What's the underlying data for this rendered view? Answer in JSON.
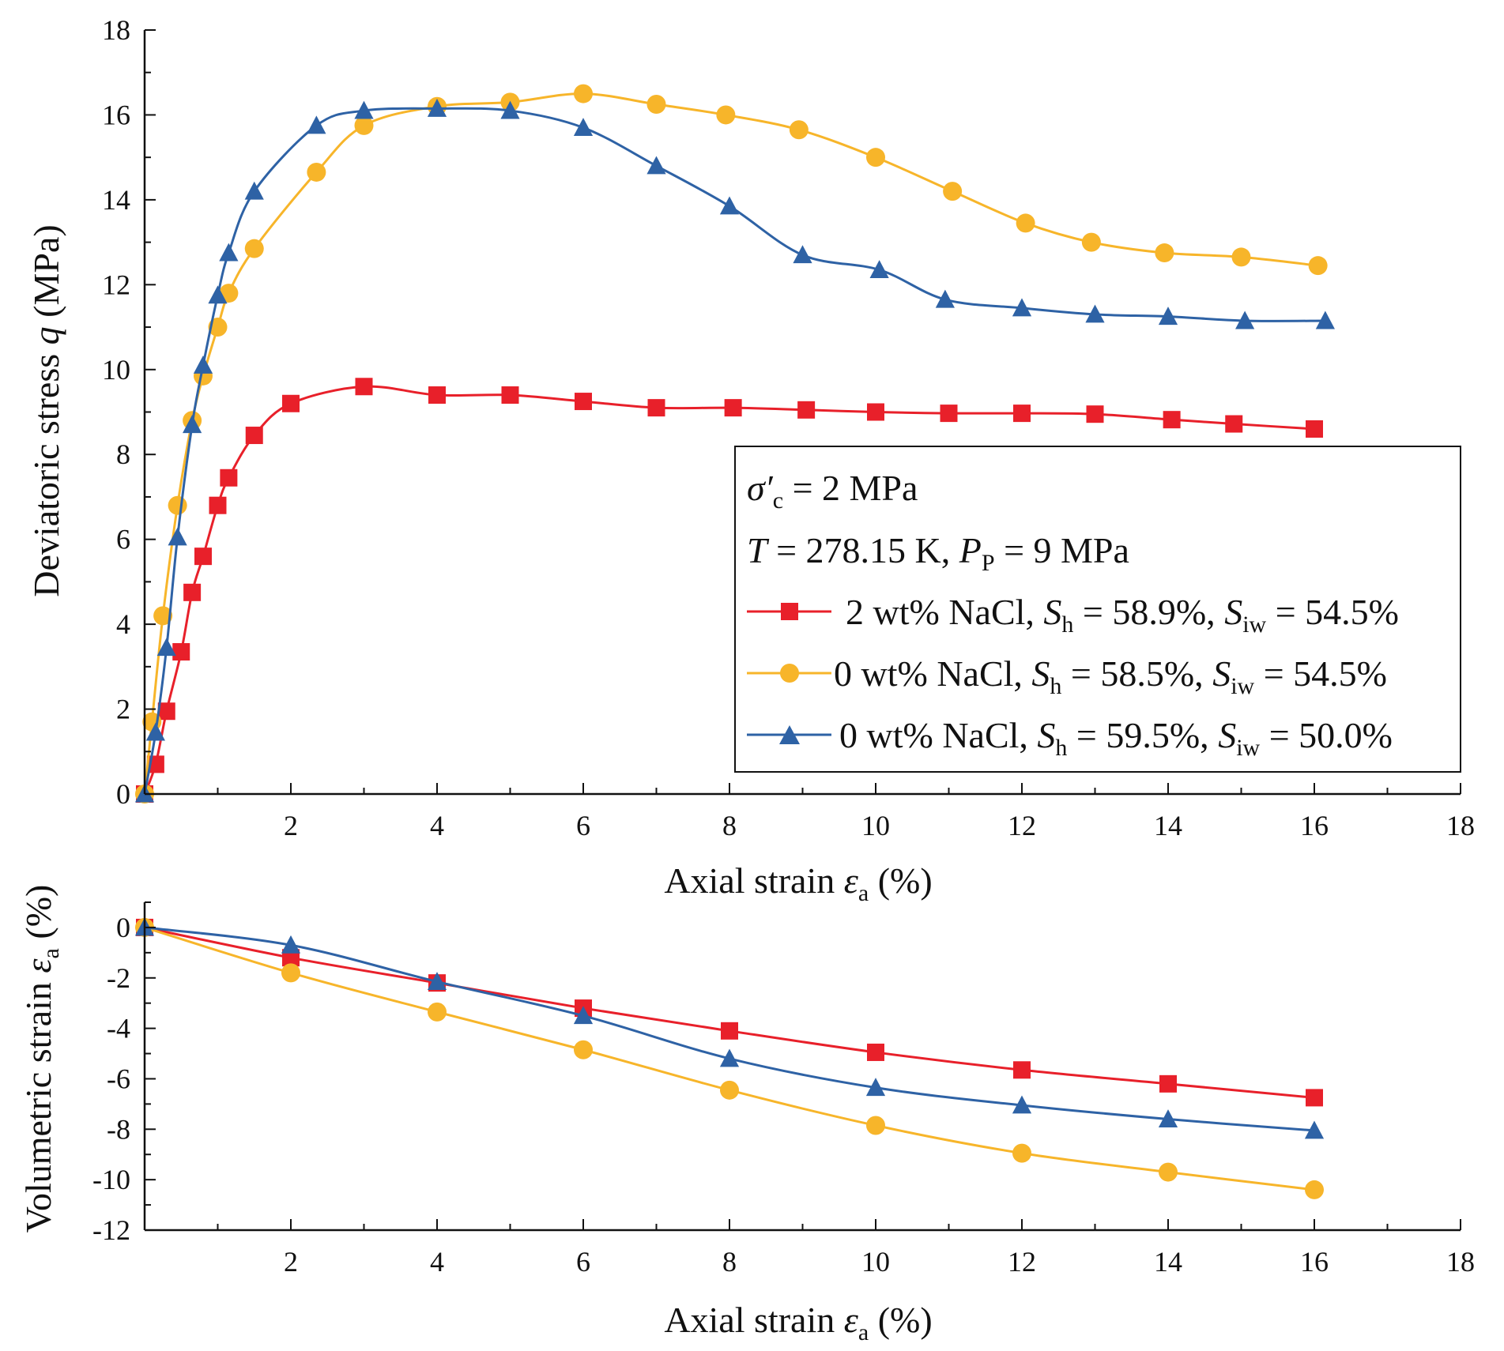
{
  "chart_data": [
    {
      "type": "line",
      "id": "stress",
      "xlabel": {
        "base": "Axial strain ",
        "symbol": "ε",
        "sub": "a",
        "tail": " (%)"
      },
      "ylabel": {
        "base": "Deviatoric stress ",
        "symbol": "q",
        "tail": " (MPa)"
      },
      "xlim": [
        0,
        18
      ],
      "ylim": [
        0,
        18
      ],
      "xticks": [
        2,
        4,
        6,
        8,
        10,
        12,
        14,
        16,
        18
      ],
      "yticks": [
        0,
        2,
        4,
        6,
        8,
        10,
        12,
        14,
        16,
        18
      ],
      "legend": {
        "placement": "center-right",
        "header_1": {
          "symbol": "σ′",
          "sub": "c",
          "tail": " = 2 MPa"
        },
        "header_2": {
          "t_symbol": "T",
          "t_text": " = 278.15 K, ",
          "p_symbol": "P",
          "p_sub": "P",
          "p_tail": " = 9 MPa"
        }
      },
      "series": [
        {
          "name": "2 wt% NaCl",
          "label_prefix": " 2 wt% NaCl, ",
          "sh_symbol": "S",
          "sh_sub": "h",
          "sh_value": " = 58.9%, ",
          "siw_symbol": "S",
          "siw_sub": "iw",
          "siw_value": " = 54.5%",
          "color": "#e8202a",
          "marker": "square",
          "x": [
            0,
            0.15,
            0.3,
            0.5,
            0.65,
            0.8,
            1.0,
            1.15,
            1.5,
            2.0,
            3.0,
            4.0,
            5.0,
            6.0,
            7.0,
            8.05,
            9.05,
            10.0,
            11.0,
            12.0,
            13.0,
            14.05,
            14.9,
            16.0
          ],
          "y": [
            0,
            0.7,
            1.95,
            3.35,
            4.75,
            5.6,
            6.8,
            7.45,
            8.45,
            9.2,
            9.6,
            9.4,
            9.4,
            9.25,
            9.1,
            9.1,
            9.05,
            9.0,
            8.97,
            8.97,
            8.95,
            8.82,
            8.72,
            8.6
          ]
        },
        {
          "name": "0 wt% NaCl (Siw 54.5%)",
          "label_prefix": "0 wt% NaCl, ",
          "sh_symbol": "S",
          "sh_sub": "h",
          "sh_value": " = 58.5%, ",
          "siw_symbol": "S",
          "siw_sub": "iw",
          "siw_value": " = 54.5%",
          "color": "#f7b52a",
          "marker": "circle",
          "x": [
            0,
            0.1,
            0.25,
            0.45,
            0.65,
            0.8,
            1.0,
            1.15,
            1.5,
            2.35,
            3.0,
            4.0,
            5.0,
            6.0,
            7.0,
            7.95,
            8.95,
            10.0,
            11.05,
            12.05,
            12.95,
            13.95,
            15.0,
            16.05
          ],
          "y": [
            0,
            1.7,
            4.2,
            6.8,
            8.8,
            9.85,
            11.0,
            11.8,
            12.85,
            14.65,
            15.75,
            16.2,
            16.3,
            16.5,
            16.25,
            16.0,
            15.65,
            15.0,
            14.2,
            13.45,
            13.0,
            12.75,
            12.65,
            12.45
          ]
        },
        {
          "name": "0 wt% NaCl (Siw 50.0%)",
          "label_prefix": "0 wt% NaCl, ",
          "sh_symbol": "S",
          "sh_sub": "h",
          "sh_value": " = 59.5%, ",
          "siw_symbol": "S",
          "siw_sub": "iw",
          "siw_value": " = 50.0%",
          "color": "#2e62a5",
          "marker": "triangle",
          "x": [
            0,
            0.15,
            0.3,
            0.45,
            0.65,
            0.8,
            1.0,
            1.15,
            1.5,
            2.35,
            3.0,
            4.0,
            5.0,
            6.0,
            7.0,
            8.0,
            9.0,
            10.05,
            10.95,
            12.0,
            13.0,
            14.0,
            15.05,
            16.15
          ],
          "y": [
            0,
            1.45,
            3.45,
            6.05,
            8.7,
            10.1,
            11.75,
            12.75,
            14.2,
            15.75,
            16.1,
            16.15,
            16.1,
            15.7,
            14.8,
            13.85,
            12.7,
            12.35,
            11.65,
            11.45,
            11.3,
            11.25,
            11.15,
            11.15
          ]
        }
      ]
    },
    {
      "type": "line",
      "id": "volumetric",
      "xlabel": {
        "base": "Axial strain ",
        "symbol": "ε",
        "sub": "a",
        "tail": " (%)"
      },
      "ylabel": {
        "base": "Volumetric strain ",
        "symbol": "ε",
        "sub": "a",
        "tail": " (%)"
      },
      "xlim": [
        0,
        18
      ],
      "ylim": [
        -12,
        1
      ],
      "xticks": [
        2,
        4,
        6,
        8,
        10,
        12,
        14,
        16,
        18
      ],
      "yticks": [
        0,
        -2,
        -4,
        -6,
        -8,
        -10,
        -12
      ],
      "series": [
        {
          "name": "2 wt% NaCl",
          "color": "#e8202a",
          "marker": "square",
          "x": [
            0,
            2,
            4,
            6,
            8,
            10,
            12,
            14,
            16
          ],
          "y": [
            0,
            -1.2,
            -2.2,
            -3.2,
            -4.1,
            -4.95,
            -5.65,
            -6.2,
            -6.75
          ]
        },
        {
          "name": "0 wt% NaCl (Siw 54.5%)",
          "color": "#f7b52a",
          "marker": "circle",
          "x": [
            0,
            2,
            4,
            6,
            8,
            10,
            12,
            14,
            16
          ],
          "y": [
            0,
            -1.8,
            -3.35,
            -4.85,
            -6.45,
            -7.85,
            -8.95,
            -9.7,
            -10.4
          ]
        },
        {
          "name": "0 wt% NaCl (Siw 50.0%)",
          "color": "#2e62a5",
          "marker": "triangle",
          "x": [
            0,
            2,
            4,
            6,
            8,
            10,
            12,
            14,
            16
          ],
          "y": [
            0,
            -0.7,
            -2.15,
            -3.5,
            -5.2,
            -6.35,
            -7.05,
            -7.6,
            -8.05
          ]
        }
      ]
    }
  ]
}
